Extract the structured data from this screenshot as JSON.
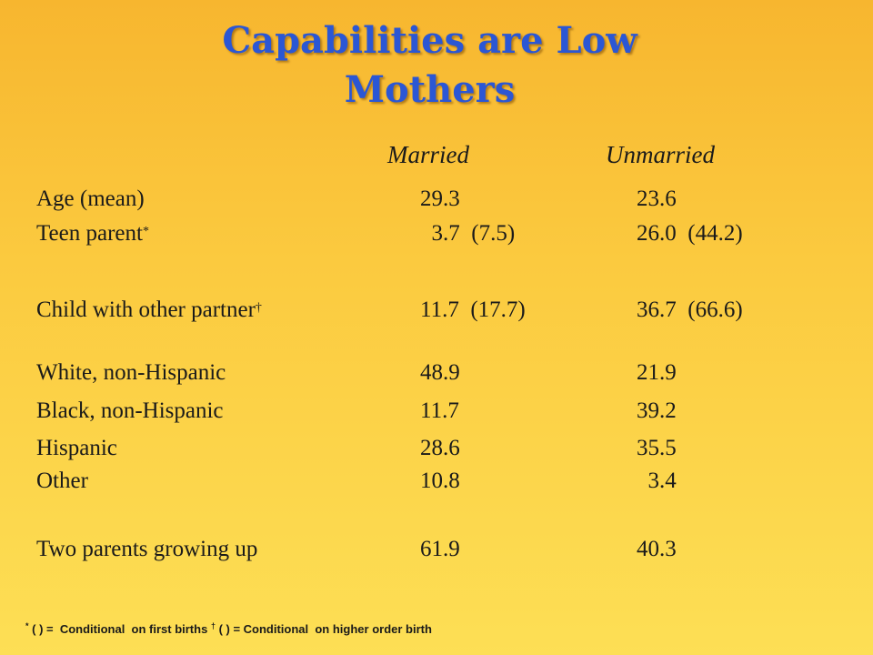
{
  "title": {
    "line1": "Capabilities are Low",
    "line2": "Mothers"
  },
  "columns": {
    "married": "Married",
    "unmarried": "Unmarried"
  },
  "rows": [
    {
      "label": "Age (mean)",
      "mark": "",
      "married": "29.3",
      "unmarried": "23.6"
    },
    {
      "label": "Teen parent",
      "mark": "*",
      "married": "  3.7  (7.5)",
      "unmarried": "26.0  (44.2)"
    },
    {
      "label": "Child with other partner",
      "mark": "†",
      "married": "11.7  (17.7)",
      "unmarried": "36.7  (66.6)"
    },
    {
      "label": "White, non-Hispanic",
      "mark": "",
      "married": "48.9",
      "unmarried": "21.9"
    },
    {
      "label": "Black, non-Hispanic",
      "mark": "",
      "married": "11.7",
      "unmarried": "39.2"
    },
    {
      "label": "Hispanic",
      "mark": "",
      "married": "28.6",
      "unmarried": "35.5"
    },
    {
      "label": "Other",
      "mark": "",
      "married": "10.8",
      "unmarried": "  3.4"
    },
    {
      "label": "Two parents growing up",
      "mark": "",
      "married": "61.9",
      "unmarried": "40.3"
    }
  ],
  "footnote": {
    "mark1": "*",
    "text1": " ( ) =  Conditional  on first births ",
    "mark2": "†",
    "text2": " ( ) = Conditional  on higher order birth"
  }
}
